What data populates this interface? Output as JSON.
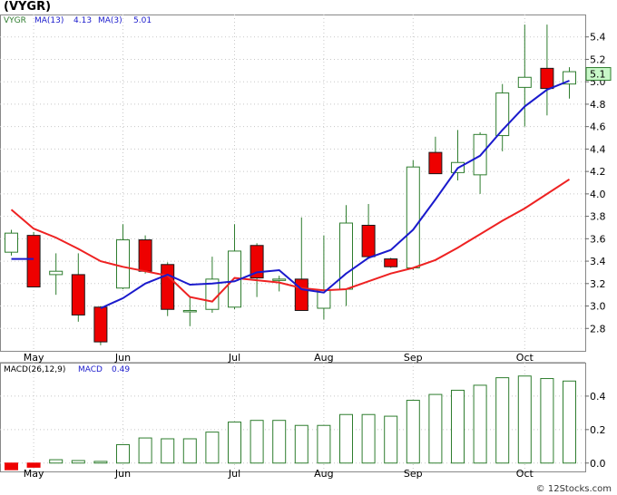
{
  "header": {
    "title": "(VYGR)",
    "credit": "© 12Stocks.com"
  },
  "colors": {
    "up_fill": "#ffffff",
    "up_stroke": "#2e7d2e",
    "down_fill": "#ee0000",
    "down_stroke": "#1a1a1a",
    "wick": "#2e7d2e",
    "ma13": "#ee2222",
    "ma3": "#1a1acc",
    "grid": "#c8c8c8",
    "macd_bar": "#2e7d2e",
    "macd_neg": "#ee0000",
    "last_price_bg": "#c8f7c8"
  },
  "chart_data": [
    {
      "type": "candlestick",
      "legend": {
        "ticker": "VYGR",
        "ma13_label": "MA(13)",
        "ma13_value": "4.13",
        "ma3_label": "MA(3)",
        "ma3_value": "5.01"
      },
      "y_ticks": [
        "2.8",
        "3.0",
        "3.2",
        "3.4",
        "3.6",
        "3.8",
        "4.0",
        "4.2",
        "4.4",
        "4.6",
        "4.8",
        "5.0",
        "5.2",
        "5.4"
      ],
      "ylim": [
        2.6,
        5.6
      ],
      "x_ticks": [
        {
          "label": "May",
          "index": 1.0
        },
        {
          "label": "Jun",
          "index": 5.0
        },
        {
          "label": "Jul",
          "index": 10.0
        },
        {
          "label": "Aug",
          "index": 14.0
        },
        {
          "label": "Sep",
          "index": 18.0
        },
        {
          "label": "Oct",
          "index": 23.0
        }
      ],
      "last_price_label": "5.1",
      "last_price_value": 5.07,
      "candles": [
        {
          "o": 3.48,
          "h": 3.68,
          "l": 3.45,
          "c": 3.65
        },
        {
          "o": 3.63,
          "h": 3.66,
          "l": 3.17,
          "c": 3.17
        },
        {
          "o": 3.28,
          "h": 3.47,
          "l": 3.1,
          "c": 3.31
        },
        {
          "o": 3.28,
          "h": 3.47,
          "l": 2.86,
          "c": 2.92
        },
        {
          "o": 2.99,
          "h": 3.0,
          "l": 2.65,
          "c": 2.68
        },
        {
          "o": 3.16,
          "h": 3.73,
          "l": 3.15,
          "c": 3.59
        },
        {
          "o": 3.59,
          "h": 3.63,
          "l": 3.29,
          "c": 3.31
        },
        {
          "o": 3.37,
          "h": 3.39,
          "l": 2.91,
          "c": 2.97
        },
        {
          "o": 2.95,
          "h": 3.08,
          "l": 2.82,
          "c": 2.96
        },
        {
          "o": 2.97,
          "h": 3.44,
          "l": 2.94,
          "c": 3.24
        },
        {
          "o": 2.99,
          "h": 3.73,
          "l": 2.97,
          "c": 3.49
        },
        {
          "o": 3.54,
          "h": 3.56,
          "l": 3.08,
          "c": 3.25
        },
        {
          "o": 3.23,
          "h": 3.27,
          "l": 3.13,
          "c": 3.24
        },
        {
          "o": 3.24,
          "h": 3.79,
          "l": 2.96,
          "c": 2.96
        },
        {
          "o": 2.98,
          "h": 3.63,
          "l": 2.88,
          "c": 3.14
        },
        {
          "o": 3.15,
          "h": 3.9,
          "l": 3.0,
          "c": 3.74
        },
        {
          "o": 3.72,
          "h": 3.91,
          "l": 3.42,
          "c": 3.44
        },
        {
          "o": 3.42,
          "h": 3.43,
          "l": 3.34,
          "c": 3.35
        },
        {
          "o": 3.34,
          "h": 4.3,
          "l": 3.32,
          "c": 4.24
        },
        {
          "o": 4.37,
          "h": 4.51,
          "l": 4.18,
          "c": 4.18
        },
        {
          "o": 4.19,
          "h": 4.57,
          "l": 4.12,
          "c": 4.28
        },
        {
          "o": 4.17,
          "h": 4.55,
          "l": 4.0,
          "c": 4.53
        },
        {
          "o": 4.52,
          "h": 4.98,
          "l": 4.38,
          "c": 4.9
        },
        {
          "o": 4.95,
          "h": 5.51,
          "l": 4.6,
          "c": 5.04
        },
        {
          "o": 5.12,
          "h": 5.51,
          "l": 4.7,
          "c": 4.94
        },
        {
          "o": 4.98,
          "h": 5.13,
          "l": 4.85,
          "c": 5.09
        }
      ],
      "ma13": [
        3.86,
        3.69,
        3.61,
        3.51,
        3.4,
        3.35,
        3.31,
        3.27,
        3.08,
        3.04,
        3.25,
        3.23,
        3.21,
        3.16,
        3.14,
        3.15,
        3.22,
        3.29,
        3.34,
        3.41,
        3.52,
        3.64,
        3.76,
        3.87,
        4.0,
        4.13
      ],
      "ma3": [
        3.42,
        3.42,
        null,
        null,
        2.98,
        3.07,
        3.2,
        3.28,
        3.19,
        3.2,
        3.22,
        3.3,
        3.32,
        3.15,
        3.12,
        3.29,
        3.43,
        3.5,
        3.68,
        3.95,
        4.23,
        4.34,
        4.57,
        4.78,
        4.93,
        5.01
      ]
    },
    {
      "type": "bar",
      "legend": {
        "label": "MACD(26,12,9)",
        "macd_label": "MACD",
        "macd_value": "0.49"
      },
      "y_ticks": [
        "0.0",
        "0.2",
        "0.4"
      ],
      "ylim": [
        -0.05,
        0.6
      ],
      "values": [
        -0.04,
        -0.025,
        0.02,
        0.015,
        0.01,
        0.11,
        0.15,
        0.145,
        0.145,
        0.185,
        0.245,
        0.255,
        0.255,
        0.225,
        0.225,
        0.29,
        0.29,
        0.28,
        0.375,
        0.41,
        0.435,
        0.465,
        0.51,
        0.52,
        0.505,
        0.49
      ]
    }
  ]
}
